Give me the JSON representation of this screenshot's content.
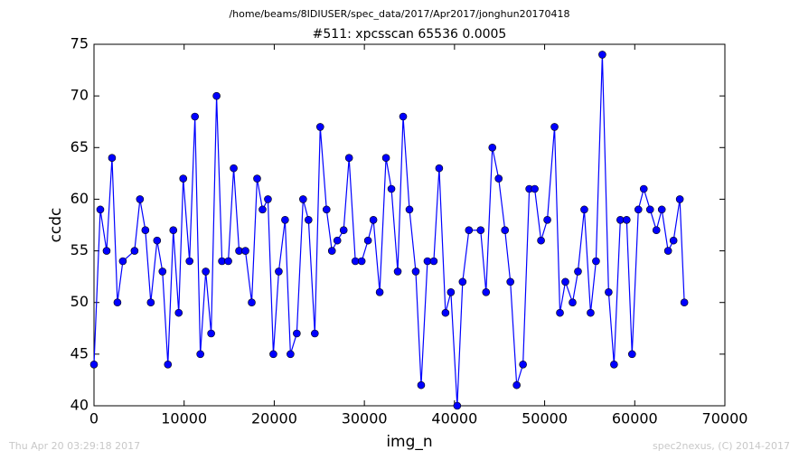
{
  "chart_data": {
    "type": "line",
    "suptitle": "/home/beams/8IDIUSER/spec_data/2017/Apr2017/jonghun20170418",
    "title": "#511: xpcsscan 65536 0.0005",
    "xlabel": "img_n",
    "ylabel": "ccdc",
    "annotations": [
      "Thu Apr 20 03:29:18 2017",
      "spec2nexus, (C) 2014-2017"
    ],
    "color": "#0000ff",
    "marker": true,
    "x": [
      0,
      700,
      1400,
      2000,
      2600,
      3200,
      4500,
      5100,
      5700,
      6300,
      7000,
      7600,
      8200,
      8800,
      9400,
      9900,
      10600,
      11200,
      11800,
      12400,
      13000,
      13600,
      14200,
      14900,
      15500,
      16100,
      16800,
      17500,
      18100,
      18700,
      19300,
      19900,
      20500,
      21200,
      21800,
      22500,
      23200,
      23800,
      24500,
      25100,
      25800,
      26400,
      27000,
      27700,
      28300,
      29000,
      29700,
      30400,
      31000,
      31700,
      32400,
      33000,
      33700,
      34300,
      35000,
      35700,
      36300,
      37000,
      37700,
      38300,
      39000,
      39600,
      40300,
      40900,
      41600,
      42900,
      43500,
      44200,
      44900,
      45600,
      46200,
      46900,
      47600,
      48300,
      48900,
      49600,
      50300,
      51100,
      51700,
      52300,
      53100,
      53700,
      54400,
      55100,
      55700,
      56400,
      57100,
      57700,
      58400,
      59100,
      59700,
      60400,
      61000,
      61700,
      62400,
      63000,
      63700,
      64300,
      65000,
      65500
    ],
    "values": [
      44,
      59,
      55,
      64,
      50,
      54,
      55,
      60,
      57,
      50,
      56,
      53,
      44,
      57,
      49,
      62,
      54,
      68,
      45,
      53,
      47,
      70,
      54,
      54,
      63,
      55,
      55,
      50,
      62,
      59,
      60,
      45,
      53,
      58,
      45,
      47,
      60,
      58,
      47,
      67,
      59,
      55,
      56,
      57,
      64,
      54,
      54,
      56,
      58,
      51,
      64,
      61,
      53,
      68,
      59,
      53,
      42,
      54,
      54,
      63,
      49,
      51,
      40,
      52,
      57,
      57,
      51,
      65,
      62,
      57,
      52,
      42,
      44,
      61,
      61,
      56,
      58,
      67,
      49,
      52,
      50,
      53,
      59,
      49,
      54,
      74,
      51,
      44,
      58,
      58,
      45,
      59,
      61,
      59,
      57,
      59,
      55,
      56,
      60,
      50
    ],
    "xlim": [
      0,
      70000
    ],
    "xticks": [
      0,
      10000,
      20000,
      30000,
      40000,
      50000,
      60000,
      70000
    ],
    "ylim": [
      40,
      75
    ],
    "yticks": [
      40,
      45,
      50,
      55,
      60,
      65,
      70,
      75
    ]
  }
}
